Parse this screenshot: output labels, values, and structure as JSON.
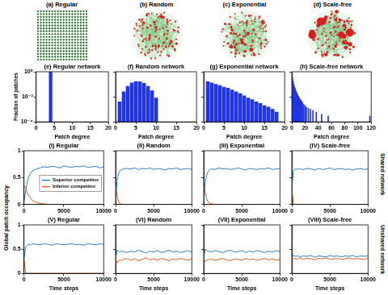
{
  "network_panels": [
    "(a) Regular",
    "(b) Random",
    "(c) Exponential",
    "(d) Scale-free"
  ],
  "shared_y_label": "Global patch occupancy",
  "row_labels": [
    "Shared network",
    "Unshared network"
  ],
  "chart_data": [
    {
      "type": "bar",
      "title": "(e) Regular network",
      "x_label": "Patch degree",
      "y_label": "Fraction of patches",
      "x": [
        4
      ],
      "values": [
        1
      ],
      "color": "#1f35e6",
      "xlim": [
        0,
        20
      ],
      "xticks": [
        0,
        5,
        10,
        15,
        20
      ],
      "ylim": [
        0.0001,
        1
      ],
      "log": "y",
      "yticks": [
        {
          "value": 0.0001,
          "label": "10⁻⁴"
        },
        {
          "value": 0.01,
          "label": "10⁻²"
        },
        {
          "value": 1,
          "label": "10⁰"
        }
      ],
      "grid": false,
      "tick_labels": true
    },
    {
      "type": "bar",
      "title": "(f) Random network",
      "x_label": "Patch degree",
      "x": [
        1,
        2,
        3,
        4,
        5,
        6,
        7,
        8,
        9,
        10
      ],
      "values": [
        0.004,
        0.025,
        0.07,
        0.13,
        0.17,
        0.16,
        0.12,
        0.07,
        0.03,
        0.008
      ],
      "color": "#1f35e6",
      "xlim": [
        0,
        20
      ],
      "xticks": [
        0,
        5,
        10,
        15,
        20
      ],
      "ylim": [
        0.0001,
        1
      ],
      "log": "y",
      "yticks": [
        {
          "value": 0.0001,
          "label": "10⁻⁴"
        },
        {
          "value": 0.01,
          "label": "10⁻²"
        },
        {
          "value": 1,
          "label": "10⁰"
        }
      ],
      "grid": false,
      "tick_labels": "x"
    },
    {
      "type": "bar",
      "title": "(g) Exponential network",
      "x_label": "Patch degree",
      "x": [
        1,
        2,
        3,
        4,
        5,
        6,
        7,
        8,
        9,
        10,
        11,
        12,
        13,
        14,
        15,
        16,
        17,
        18
      ],
      "values": [
        0.16,
        0.13,
        0.1,
        0.08,
        0.06,
        0.05,
        0.035,
        0.025,
        0.018,
        0.012,
        0.008,
        0.006,
        0.004,
        0.003,
        0.002,
        0.0015,
        0.001,
        0.0006
      ],
      "color": "#1f35e6",
      "xlim": [
        0,
        20
      ],
      "xticks": [
        0,
        5,
        10,
        15,
        20
      ],
      "ylim": [
        0.0001,
        1
      ],
      "log": "y",
      "yticks": [
        {
          "value": 0.0001,
          "label": "10⁻⁴"
        },
        {
          "value": 0.01,
          "label": "10⁻²"
        },
        {
          "value": 1,
          "label": "10⁰"
        }
      ],
      "grid": false,
      "tick_labels": "x"
    },
    {
      "type": "bar",
      "title": "(h) Scale-free network",
      "x_label": "Patch degree",
      "x": [
        1,
        2,
        3,
        4,
        5,
        6,
        7,
        8,
        9,
        10,
        11,
        12,
        13,
        14,
        15,
        16,
        18,
        20,
        22,
        25,
        28,
        32,
        37,
        45,
        55,
        118
      ],
      "values": [
        0.35,
        0.18,
        0.1,
        0.065,
        0.045,
        0.032,
        0.024,
        0.018,
        0.014,
        0.011,
        0.009,
        0.007,
        0.006,
        0.005,
        0.004,
        0.0035,
        0.0025,
        0.002,
        0.0015,
        0.0012,
        0.001,
        0.0008,
        0.0006,
        0.0004,
        0.0003,
        0.0003
      ],
      "color": "#1f35e6",
      "xlim": [
        0,
        120
      ],
      "xticks": [
        0,
        20,
        40,
        60,
        80,
        100,
        120
      ],
      "ylim": [
        0.0001,
        1
      ],
      "log": "y",
      "yticks": [
        {
          "value": 0.0001,
          "label": "10⁻⁴"
        },
        {
          "value": 0.01,
          "label": "10⁻²"
        },
        {
          "value": 1,
          "label": "10⁰"
        }
      ],
      "grid": false,
      "tick_labels": "x"
    },
    {
      "type": "line",
      "title": "(I) Regular",
      "legend": "right",
      "x": [
        0,
        200,
        400,
        600,
        800,
        1000,
        1500,
        2000,
        2500,
        3000,
        3500,
        4000,
        4500,
        5000,
        5500,
        6000,
        6500,
        7000,
        7500,
        8000,
        8500,
        9000,
        9500,
        10000
      ],
      "xlim": [
        0,
        10000
      ],
      "xticks": [
        0,
        5000,
        10000
      ],
      "ylim": [
        0,
        1
      ],
      "yticks": [
        0,
        0.5,
        1
      ],
      "grid": false,
      "tick_labels": true,
      "series": [
        {
          "name": "Superior competitor",
          "color": "#2f7fc1",
          "values": [
            0.05,
            0.25,
            0.42,
            0.52,
            0.58,
            0.62,
            0.66,
            0.68,
            0.7,
            0.69,
            0.71,
            0.7,
            0.68,
            0.72,
            0.7,
            0.69,
            0.71,
            0.7,
            0.72,
            0.69,
            0.7,
            0.71,
            0.68,
            0.7
          ]
        },
        {
          "name": "Inferior competitor",
          "color": "#d95f1e",
          "values": [
            0.35,
            0.3,
            0.22,
            0.16,
            0.12,
            0.08,
            0.04,
            0.02,
            0.01,
            0,
            0,
            0,
            0,
            0,
            0,
            0,
            0,
            0,
            0,
            0,
            0,
            0,
            0,
            0
          ]
        }
      ]
    },
    {
      "type": "line",
      "title": "(II) Random",
      "x": [
        0,
        200,
        400,
        600,
        800,
        1000,
        1500,
        2000,
        2500,
        3000,
        3500,
        4000,
        4500,
        5000,
        5500,
        6000,
        6500,
        7000,
        7500,
        8000,
        8500,
        9000,
        9500,
        10000
      ],
      "xlim": [
        0,
        10000
      ],
      "xticks": [
        0,
        5000,
        10000
      ],
      "ylim": [
        0,
        1
      ],
      "yticks": [
        0,
        0.5,
        1
      ],
      "grid": false,
      "tick_labels": "x",
      "series": [
        {
          "color": "#2f7fc1",
          "values": [
            0.05,
            0.45,
            0.58,
            0.63,
            0.65,
            0.66,
            0.67,
            0.66,
            0.68,
            0.65,
            0.67,
            0.66,
            0.68,
            0.65,
            0.67,
            0.66,
            0.64,
            0.67,
            0.66,
            0.68,
            0.65,
            0.66,
            0.67,
            0.65
          ]
        },
        {
          "color": "#d95f1e",
          "values": [
            0.35,
            0.15,
            0.05,
            0.01,
            0,
            0,
            0,
            0,
            0,
            0,
            0,
            0,
            0,
            0,
            0,
            0,
            0,
            0,
            0,
            0,
            0,
            0,
            0,
            0
          ]
        }
      ]
    },
    {
      "type": "line",
      "title": "(III) Exponential",
      "x": [
        0,
        200,
        400,
        600,
        800,
        1000,
        1500,
        2000,
        2500,
        3000,
        3500,
        4000,
        4500,
        5000,
        5500,
        6000,
        6500,
        7000,
        7500,
        8000,
        8500,
        9000,
        9500,
        10000
      ],
      "xlim": [
        0,
        10000
      ],
      "xticks": [
        0,
        5000,
        10000
      ],
      "ylim": [
        0,
        1
      ],
      "yticks": [
        0,
        0.5,
        1
      ],
      "grid": false,
      "tick_labels": "x",
      "series": [
        {
          "color": "#2f7fc1",
          "values": [
            0.05,
            0.4,
            0.55,
            0.62,
            0.65,
            0.66,
            0.65,
            0.68,
            0.66,
            0.67,
            0.65,
            0.66,
            0.68,
            0.66,
            0.64,
            0.67,
            0.66,
            0.65,
            0.67,
            0.66,
            0.68,
            0.65,
            0.66,
            0.67
          ]
        },
        {
          "color": "#d95f1e",
          "values": [
            0.35,
            0.22,
            0.1,
            0.04,
            0.02,
            0.01,
            0,
            0,
            0,
            0,
            0,
            0,
            0,
            0,
            0,
            0,
            0,
            0,
            0,
            0,
            0,
            0,
            0,
            0
          ]
        }
      ]
    },
    {
      "type": "line",
      "title": "(IV) Scale-free",
      "x": [
        0,
        200,
        400,
        600,
        800,
        1000,
        1500,
        2000,
        2500,
        3000,
        3500,
        4000,
        4500,
        5000,
        5500,
        6000,
        6500,
        7000,
        7500,
        8000,
        8500,
        9000,
        9500,
        10000
      ],
      "xlim": [
        0,
        10000
      ],
      "xticks": [
        0,
        5000,
        10000
      ],
      "ylim": [
        0,
        1
      ],
      "yticks": [
        0,
        0.5,
        1
      ],
      "grid": false,
      "tick_labels": "x",
      "series": [
        {
          "color": "#2f7fc1",
          "values": [
            0.3,
            0.62,
            0.66,
            0.65,
            0.67,
            0.66,
            0.65,
            0.67,
            0.66,
            0.64,
            0.67,
            0.65,
            0.66,
            0.68,
            0.65,
            0.66,
            0.67,
            0.65,
            0.66,
            0.64,
            0.66,
            0.67,
            0.65,
            0.66
          ]
        },
        {
          "color": "#d95f1e",
          "values": [
            0.3,
            0.02,
            0,
            0,
            0,
            0,
            0,
            0,
            0,
            0,
            0,
            0,
            0,
            0,
            0,
            0,
            0,
            0,
            0,
            0,
            0,
            0,
            0,
            0
          ]
        }
      ]
    },
    {
      "type": "line",
      "title": "(V) Regular",
      "x_label": "Time steps",
      "x": [
        0,
        200,
        400,
        600,
        800,
        1000,
        1500,
        2000,
        2500,
        3000,
        3500,
        4000,
        4500,
        5000,
        5500,
        6000,
        6500,
        7000,
        7500,
        8000,
        8500,
        9000,
        9500,
        10000
      ],
      "xlim": [
        0,
        10000
      ],
      "xticks": [
        0,
        5000,
        10000
      ],
      "ylim": [
        0,
        1
      ],
      "yticks": [
        0,
        0.5,
        1
      ],
      "grid": false,
      "tick_labels": true,
      "series": [
        {
          "color": "#2f7fc1",
          "values": [
            0.3,
            0.55,
            0.58,
            0.6,
            0.59,
            0.61,
            0.6,
            0.59,
            0.61,
            0.6,
            0.58,
            0.61,
            0.6,
            0.59,
            0.6,
            0.61,
            0.59,
            0.6,
            0.58,
            0.61,
            0.6,
            0.59,
            0.61,
            0.6
          ]
        },
        {
          "color": "#d95f1e",
          "values": [
            0.3,
            0.01,
            0,
            0,
            0,
            0,
            0,
            0,
            0,
            0,
            0,
            0,
            0,
            0,
            0,
            0,
            0,
            0,
            0,
            0,
            0,
            0,
            0,
            0
          ]
        }
      ]
    },
    {
      "type": "line",
      "title": "(VI) Random",
      "x_label": "Time steps",
      "x": [
        0,
        200,
        400,
        600,
        800,
        1000,
        1500,
        2000,
        2500,
        3000,
        3500,
        4000,
        4500,
        5000,
        5500,
        6000,
        6500,
        7000,
        7500,
        8000,
        8500,
        9000,
        9500,
        10000
      ],
      "xlim": [
        0,
        10000
      ],
      "xticks": [
        0,
        5000,
        10000
      ],
      "ylim": [
        0,
        1
      ],
      "yticks": [
        0,
        0.5,
        1
      ],
      "grid": false,
      "tick_labels": "x",
      "series": [
        {
          "color": "#2f7fc1",
          "values": [
            0.3,
            0.48,
            0.46,
            0.44,
            0.47,
            0.45,
            0.43,
            0.46,
            0.44,
            0.48,
            0.45,
            0.42,
            0.46,
            0.44,
            0.47,
            0.43,
            0.45,
            0.48,
            0.44,
            0.46,
            0.43,
            0.45,
            0.47,
            0.44
          ]
        },
        {
          "color": "#d95f1e",
          "values": [
            0.3,
            0.22,
            0.25,
            0.28,
            0.26,
            0.29,
            0.31,
            0.27,
            0.3,
            0.26,
            0.29,
            0.32,
            0.28,
            0.3,
            0.27,
            0.31,
            0.29,
            0.26,
            0.3,
            0.28,
            0.31,
            0.29,
            0.27,
            0.3
          ]
        }
      ]
    },
    {
      "type": "line",
      "title": "(VII) Exponential",
      "x_label": "Time steps",
      "x": [
        0,
        200,
        400,
        600,
        800,
        1000,
        1500,
        2000,
        2500,
        3000,
        3500,
        4000,
        4500,
        5000,
        5500,
        6000,
        6500,
        7000,
        7500,
        8000,
        8500,
        9000,
        9500,
        10000
      ],
      "xlim": [
        0,
        10000
      ],
      "xticks": [
        0,
        5000,
        10000
      ],
      "ylim": [
        0,
        1
      ],
      "yticks": [
        0,
        0.5,
        1
      ],
      "grid": false,
      "tick_labels": "x",
      "series": [
        {
          "color": "#2f7fc1",
          "values": [
            0.3,
            0.5,
            0.47,
            0.45,
            0.46,
            0.44,
            0.47,
            0.45,
            0.43,
            0.46,
            0.48,
            0.44,
            0.45,
            0.47,
            0.43,
            0.46,
            0.44,
            0.47,
            0.45,
            0.43,
            0.46,
            0.44,
            0.47,
            0.45
          ]
        },
        {
          "color": "#d95f1e",
          "values": [
            0.3,
            0.24,
            0.27,
            0.29,
            0.28,
            0.3,
            0.27,
            0.29,
            0.31,
            0.28,
            0.26,
            0.3,
            0.29,
            0.27,
            0.31,
            0.28,
            0.3,
            0.27,
            0.29,
            0.31,
            0.28,
            0.3,
            0.27,
            0.29
          ]
        }
      ]
    },
    {
      "type": "line",
      "title": "(VIII) Scale-free",
      "x_label": "Time steps",
      "x": [
        0,
        200,
        400,
        600,
        800,
        1000,
        1500,
        2000,
        2500,
        3000,
        3500,
        4000,
        4500,
        5000,
        5500,
        6000,
        6500,
        7000,
        7500,
        8000,
        8500,
        9000,
        9500,
        10000
      ],
      "xlim": [
        0,
        10000
      ],
      "xticks": [
        0,
        5000,
        10000
      ],
      "ylim": [
        0,
        1
      ],
      "yticks": [
        0,
        0.5,
        1
      ],
      "grid": false,
      "tick_labels": "x",
      "series": [
        {
          "color": "#2f7fc1",
          "values": [
            0.3,
            0.38,
            0.36,
            0.35,
            0.37,
            0.34,
            0.36,
            0.35,
            0.37,
            0.33,
            0.36,
            0.35,
            0.34,
            0.37,
            0.35,
            0.36,
            0.34,
            0.36,
            0.35,
            0.37,
            0.34,
            0.36,
            0.35,
            0.36
          ]
        },
        {
          "color": "#d95f1e",
          "values": [
            0.3,
            0.3,
            0.31,
            0.29,
            0.3,
            0.32,
            0.29,
            0.31,
            0.3,
            0.28,
            0.31,
            0.3,
            0.32,
            0.29,
            0.3,
            0.31,
            0.29,
            0.3,
            0.32,
            0.29,
            0.31,
            0.3,
            0.29,
            0.31
          ]
        }
      ]
    }
  ]
}
